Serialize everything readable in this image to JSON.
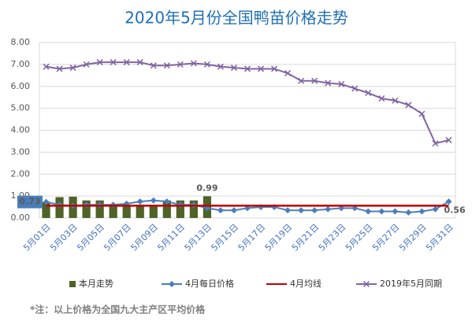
{
  "chart_data": {
    "type": "combo",
    "title": "2020年5月份全国鸭苗价格走势",
    "footnote": "*注：以上价格为全国九大主产区平均价格",
    "categories": [
      "5月01日",
      null,
      "5月03日",
      null,
      "5月05日",
      null,
      "5月07日",
      null,
      "5月09日",
      null,
      "5月11日",
      null,
      "5月13日",
      null,
      "5月15日",
      null,
      "5月17日",
      null,
      "5月19日",
      null,
      "5月21日",
      null,
      "5月23日",
      null,
      "5月25日",
      null,
      "5月27日",
      null,
      "5月29日",
      null,
      "5月31日"
    ],
    "ylim": [
      0,
      8
    ],
    "yticks": [
      {
        "value": 0,
        "label": "0.00"
      },
      {
        "value": 1,
        "label": "1.00"
      },
      {
        "value": 2,
        "label": "2.00"
      },
      {
        "value": 3,
        "label": "3.00"
      },
      {
        "value": 4,
        "label": "4.00"
      },
      {
        "value": 5,
        "label": "5.00"
      },
      {
        "value": 6,
        "label": "6.00"
      },
      {
        "value": 7,
        "label": "7.00"
      },
      {
        "value": 8,
        "label": "8.00"
      }
    ],
    "grid": true,
    "legend": "bottom",
    "series": [
      {
        "name": "本月走势",
        "type": "bar",
        "color": "#4f6228",
        "values": [
          0.73,
          0.95,
          0.97,
          0.8,
          0.8,
          0.6,
          0.6,
          0.6,
          0.6,
          0.8,
          0.8,
          0.8,
          0.99,
          null,
          null,
          null,
          null,
          null,
          null,
          null,
          null,
          null,
          null,
          null,
          null,
          null,
          null,
          null,
          null,
          null,
          null
        ],
        "value_labels": [
          null,
          null,
          null,
          null,
          null,
          null,
          null,
          null,
          null,
          null,
          null,
          null,
          "0.99",
          null,
          null,
          null,
          null,
          null,
          null,
          null,
          null,
          null,
          null,
          null,
          null,
          null,
          null,
          null,
          null,
          null,
          null
        ]
      },
      {
        "name": "4月每日价格",
        "type": "line",
        "marker": "diamond",
        "color": "#4a7ebb",
        "values": [
          0.73,
          0.6,
          0.55,
          0.6,
          0.6,
          0.6,
          0.65,
          0.75,
          0.8,
          0.75,
          0.6,
          0.6,
          0.45,
          0.35,
          0.35,
          0.45,
          0.5,
          0.5,
          0.35,
          0.35,
          0.35,
          0.4,
          0.45,
          0.45,
          0.3,
          0.3,
          0.3,
          0.25,
          0.3,
          0.4,
          0.75
        ],
        "value_labels": [
          "0.73",
          null,
          null,
          null,
          null,
          null,
          null,
          null,
          null,
          null,
          null,
          null,
          null,
          null,
          null,
          null,
          null,
          null,
          null,
          null,
          null,
          null,
          null,
          null,
          null,
          null,
          null,
          null,
          null,
          null,
          null
        ]
      },
      {
        "name": "4月均线",
        "type": "line",
        "marker": "none",
        "color": "#c00000",
        "values": [
          0.56,
          0.56,
          0.56,
          0.56,
          0.56,
          0.56,
          0.56,
          0.56,
          0.56,
          0.56,
          0.56,
          0.56,
          0.56,
          0.56,
          0.56,
          0.56,
          0.56,
          0.56,
          0.56,
          0.56,
          0.56,
          0.56,
          0.56,
          0.56,
          0.56,
          0.56,
          0.56,
          0.56,
          0.56,
          0.56,
          0.56
        ],
        "value_labels": [
          null,
          null,
          null,
          null,
          null,
          null,
          null,
          null,
          null,
          null,
          null,
          null,
          null,
          null,
          null,
          null,
          null,
          null,
          null,
          null,
          null,
          null,
          null,
          null,
          null,
          null,
          null,
          null,
          null,
          null,
          "0.56"
        ]
      },
      {
        "name": "2019年5月同期",
        "type": "line",
        "marker": "x",
        "color": "#8064a2",
        "values": [
          6.9,
          6.8,
          6.85,
          7.0,
          7.1,
          7.1,
          7.1,
          7.1,
          6.95,
          6.95,
          7.0,
          7.05,
          7.0,
          6.9,
          6.85,
          6.8,
          6.8,
          6.8,
          6.6,
          6.25,
          6.25,
          6.15,
          6.1,
          5.9,
          5.7,
          5.45,
          5.35,
          5.15,
          4.75,
          3.4,
          3.55
        ]
      }
    ]
  }
}
